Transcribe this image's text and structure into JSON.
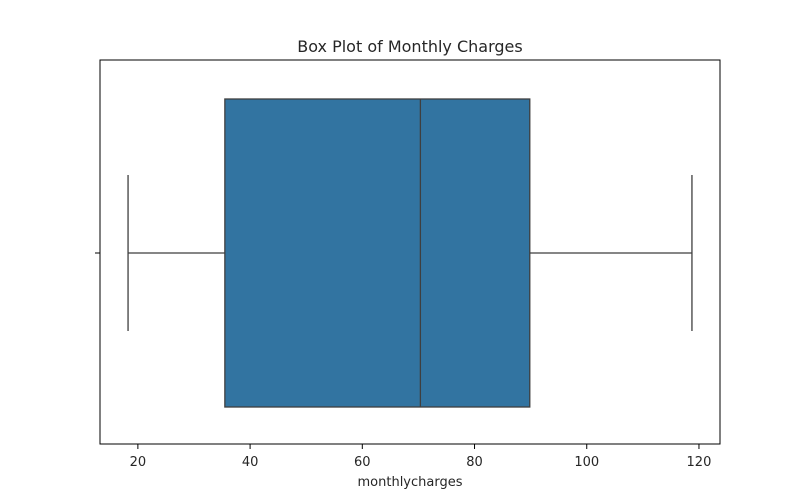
{
  "chart_data": {
    "type": "box",
    "title": "Box Plot of Monthly Charges",
    "xlabel": "monthlycharges",
    "ylabel": "",
    "orientation": "horizontal",
    "xlim": [
      13.25,
      123.75
    ],
    "xticks": [
      20,
      40,
      60,
      80,
      100,
      120
    ],
    "grid": false,
    "box": {
      "whisker_low": 18.25,
      "q1": 35.5,
      "median": 70.35,
      "q3": 89.85,
      "whisker_high": 118.75
    },
    "colors": {
      "box_fill": "#3274a1",
      "box_edge": "#3f3f3f",
      "axis": "#000000"
    }
  }
}
